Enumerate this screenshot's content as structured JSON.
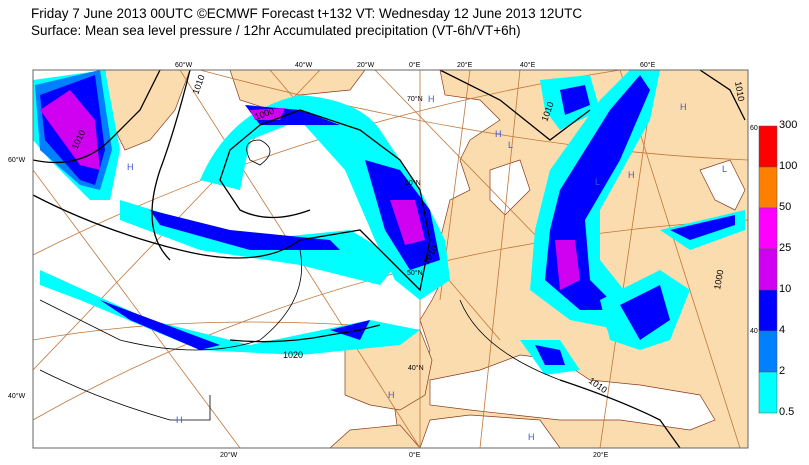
{
  "header": {
    "line1": "Friday 7 June 2013 00UTC ©ECMWF Forecast t+132 VT: Wednesday 12 June 2013 12UTC",
    "line2": "Surface: Mean sea level pressure / 12hr Accumulated precipitation (VT-6h/VT+6h)"
  },
  "map": {
    "longitude_labels_top": [
      "60°W",
      "40°W",
      "20°W",
      "0°E",
      "20°E",
      "40°E",
      "60°E"
    ],
    "longitude_labels_bottom": [
      "20°W",
      "0°E",
      "20°E"
    ],
    "latitude_labels": [
      "60°W",
      "40°W",
      "70°N",
      "60°N",
      "50°N",
      "40°N",
      "60",
      "40"
    ],
    "isobar_labels": [
      "1010",
      "1000",
      "1010",
      "1010",
      "1020",
      "1010",
      "1010",
      "1000",
      "1010"
    ],
    "pressure_centres": [
      "H",
      "H",
      "H",
      "H",
      "H",
      "H",
      "L",
      "L",
      "L",
      "H",
      "H"
    ],
    "colors": {
      "land": "#fbdcae",
      "sea": "#ffffff",
      "coast": "#8b3a1a",
      "graticule": "#c0763a",
      "isobar": "#000000"
    }
  },
  "legend": {
    "levels": [
      "300",
      "100",
      "50",
      "25",
      "10",
      "4",
      "2",
      "0.5"
    ],
    "colors": [
      "#ff0000",
      "#ff8000",
      "#ff00ff",
      "#d000f0",
      "#0000ff",
      "#0080ff",
      "#00ffff"
    ]
  }
}
